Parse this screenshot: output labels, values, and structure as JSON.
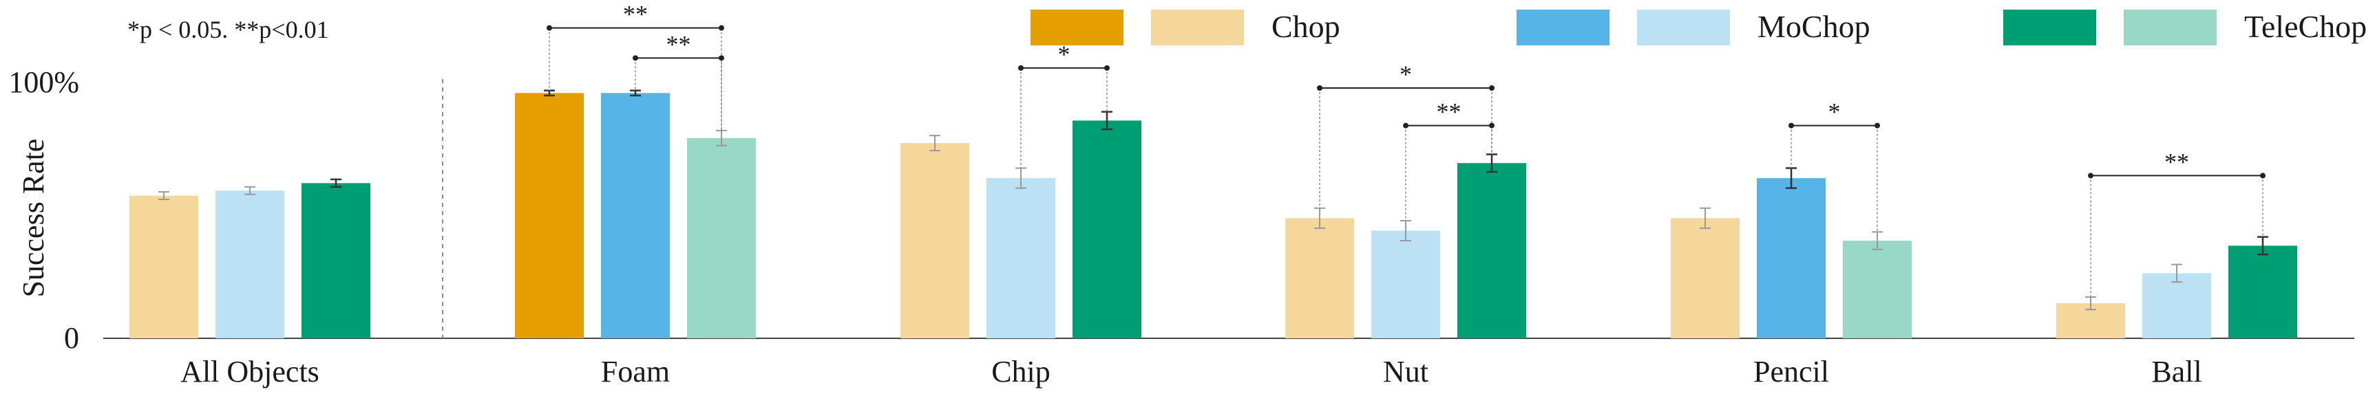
{
  "chart_data": {
    "type": "bar",
    "categories": [
      "All Objects",
      "Foam",
      "Chip",
      "Nut",
      "Pencil",
      "Ball"
    ],
    "ylabel": "Success Rate",
    "ylim": [
      0,
      100
    ],
    "ytick_labels": [
      "0",
      "100%"
    ],
    "significance_note": "*p < 0.05.   **p<0.01",
    "series": [
      {
        "name": "Chop",
        "values": [
          57,
          98,
          78,
          48,
          48,
          14
        ],
        "errors": [
          1.5,
          1.0,
          3.0,
          4.0,
          4.0,
          2.5
        ]
      },
      {
        "name": "MoChop",
        "values": [
          59,
          98,
          64,
          43,
          64,
          26
        ],
        "errors": [
          1.5,
          1.0,
          4.0,
          4.0,
          4.0,
          3.5
        ]
      },
      {
        "name": "TeleChop",
        "values": [
          62,
          80,
          87,
          70,
          39,
          37
        ],
        "errors": [
          1.5,
          3.0,
          3.5,
          3.5,
          3.5,
          3.5
        ]
      }
    ],
    "highlighted": [
      [
        false,
        true,
        false,
        false,
        false,
        false
      ],
      [
        false,
        true,
        false,
        false,
        true,
        false
      ],
      [
        true,
        false,
        true,
        true,
        false,
        true
      ]
    ],
    "significance": [
      {
        "category": 1,
        "from": 0,
        "to": 2,
        "label": "**",
        "y": 124
      },
      {
        "category": 1,
        "from": 1,
        "to": 2,
        "label": "**",
        "y": 112
      },
      {
        "category": 2,
        "from": 1,
        "to": 2,
        "label": "*",
        "y": 108
      },
      {
        "category": 3,
        "from": 0,
        "to": 2,
        "label": "*",
        "y": 100
      },
      {
        "category": 3,
        "from": 1,
        "to": 2,
        "label": "**",
        "y": 85
      },
      {
        "category": 4,
        "from": 1,
        "to": 2,
        "label": "*",
        "y": 85
      },
      {
        "category": 5,
        "from": 0,
        "to": 2,
        "label": "**",
        "y": 65
      }
    ],
    "colors": {
      "Chop": {
        "dark": "#E69F00",
        "light": "#F5D79C"
      },
      "MoChop": {
        "dark": "#56B4E9",
        "light": "#BCE1F5"
      },
      "TeleChop": {
        "dark": "#009E73",
        "light": "#99D8C6"
      }
    },
    "legend_position": "top",
    "grid": false
  }
}
